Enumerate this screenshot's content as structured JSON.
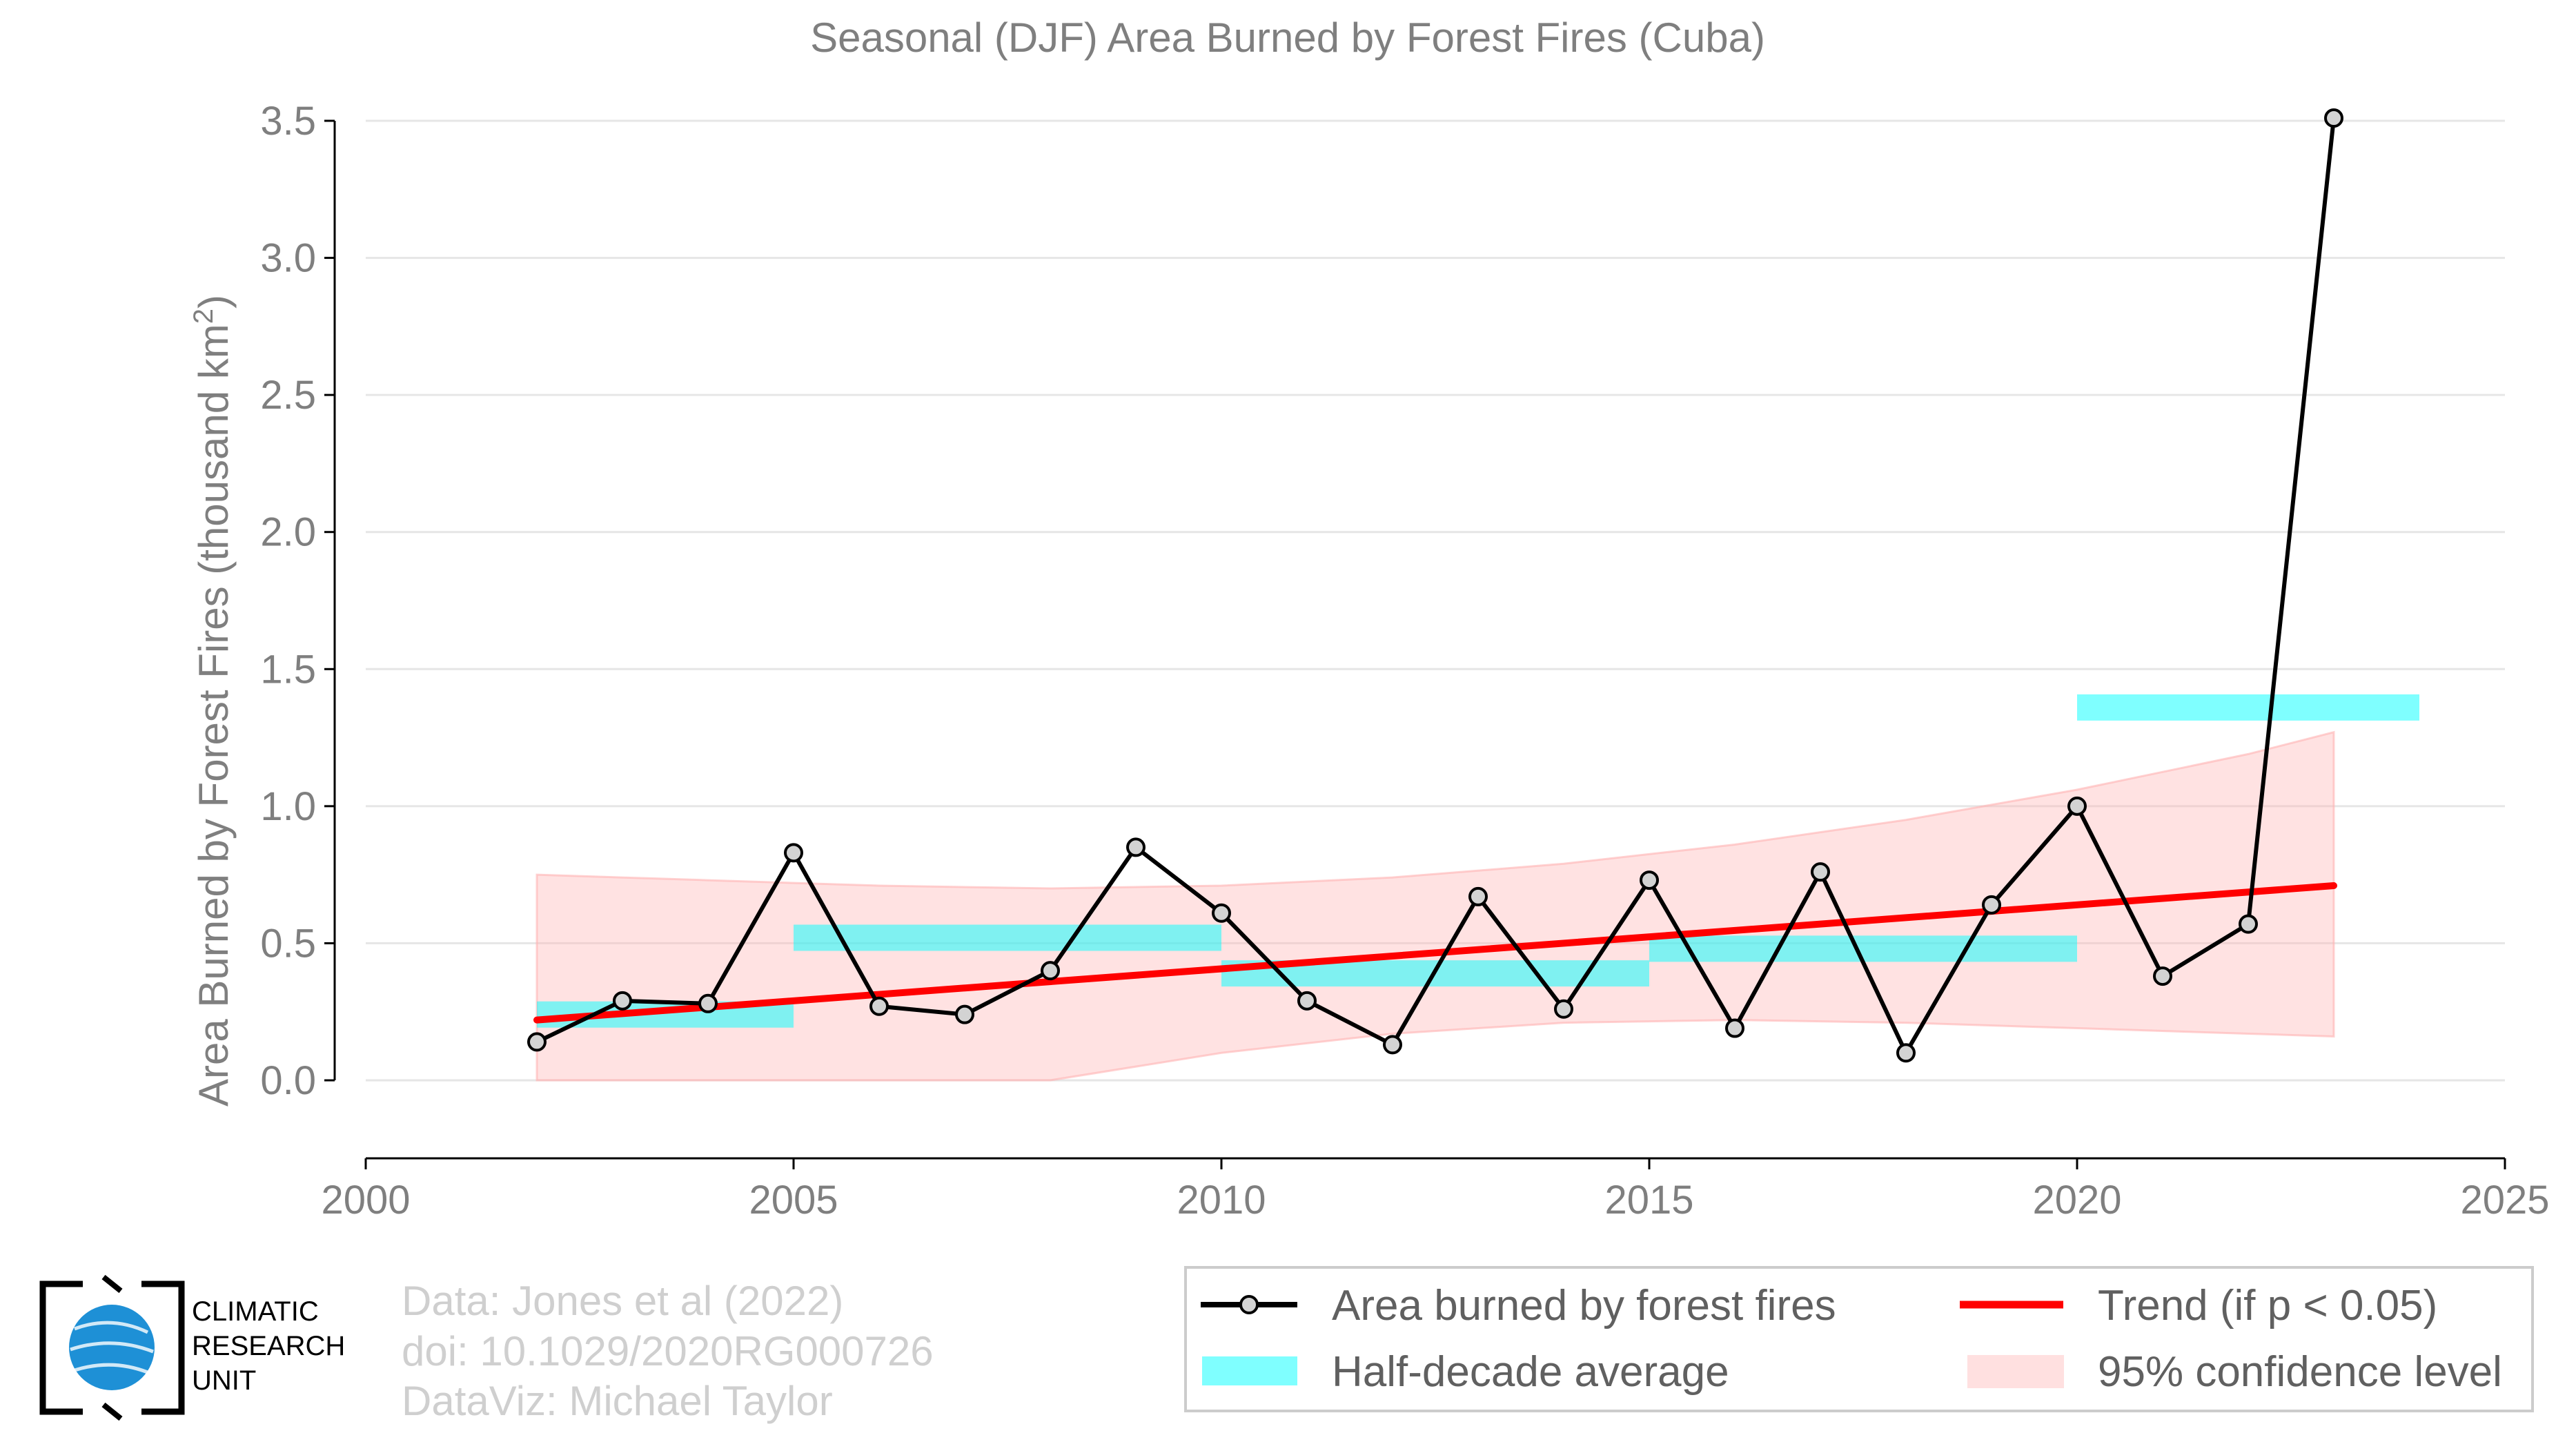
{
  "chart_data": {
    "type": "line",
    "title": "Seasonal (DJF) Area Burned by Forest Fires (Cuba)",
    "ylabel": "Area Burned by Forest Fires (thousand km",
    "ylabel_superscript": "2",
    "ylabel_close": ")",
    "xlabel": "",
    "xlim": [
      2000,
      2025
    ],
    "ylim": [
      0,
      3.5
    ],
    "xticks": [
      2000,
      2005,
      2010,
      2015,
      2020,
      2025
    ],
    "xtick_labels": [
      "2000",
      "2005",
      "2010",
      "2015",
      "2020",
      "2025"
    ],
    "yticks": [
      0,
      0.5,
      1,
      1.5,
      2,
      2.5,
      3,
      3.5
    ],
    "ytick_labels": [
      "0.0",
      "0.5",
      "1.0",
      "1.5",
      "2.0",
      "2.5",
      "3.0",
      "3.5"
    ],
    "grid": "horizontal",
    "legend_placement": "bottom-right",
    "series": [
      {
        "name": "Area burned by forest fires",
        "color": "#000000",
        "x": [
          2002,
          2003,
          2004,
          2005,
          2006,
          2007,
          2008,
          2009,
          2010,
          2011,
          2012,
          2013,
          2014,
          2015,
          2016,
          2017,
          2018,
          2019,
          2020,
          2021,
          2022,
          2023
        ],
        "y": [
          0.14,
          0.29,
          0.28,
          0.83,
          0.27,
          0.24,
          0.4,
          0.85,
          0.61,
          0.29,
          0.13,
          0.67,
          0.26,
          0.73,
          0.19,
          0.76,
          0.1,
          0.64,
          1.0,
          0.38,
          0.57,
          3.51
        ]
      }
    ],
    "half_decade_average": {
      "name": "Half-decade average",
      "color": "#00ffff",
      "bars": [
        {
          "x0": 2002,
          "x1": 2005,
          "y": 0.24
        },
        {
          "x0": 2005,
          "x1": 2010,
          "y": 0.52
        },
        {
          "x0": 2010,
          "x1": 2015,
          "y": 0.39
        },
        {
          "x0": 2015,
          "x1": 2020,
          "y": 0.48
        },
        {
          "x0": 2020,
          "x1": 2024,
          "y": 1.36
        }
      ]
    },
    "trend": {
      "name": "Trend (if p < 0.05)",
      "color": "#ff0000",
      "x": [
        2002,
        2023
      ],
      "y": [
        0.22,
        0.71
      ]
    },
    "confidence": {
      "name": "95% confidence level",
      "color": "#ffb3b3",
      "x": [
        2002,
        2004,
        2006,
        2008,
        2010,
        2012,
        2014,
        2016,
        2018,
        2020,
        2022,
        2023
      ],
      "upper": [
        0.75,
        0.73,
        0.71,
        0.7,
        0.71,
        0.74,
        0.79,
        0.86,
        0.95,
        1.06,
        1.19,
        1.27
      ],
      "lower": [
        0.0,
        -0.02,
        -0.02,
        0.0,
        0.1,
        0.17,
        0.21,
        0.22,
        0.21,
        0.19,
        0.17,
        0.16
      ]
    }
  },
  "credits": {
    "line1": "Data: Jones et al (2022)",
    "line2": "doi: 10.1029/2020RG000726",
    "line3": "DataViz: Michael Taylor"
  },
  "logo": {
    "line1": "CLIMATIC",
    "line2": "RESEARCH",
    "line3": "UNIT",
    "icon": "globe-icon"
  }
}
